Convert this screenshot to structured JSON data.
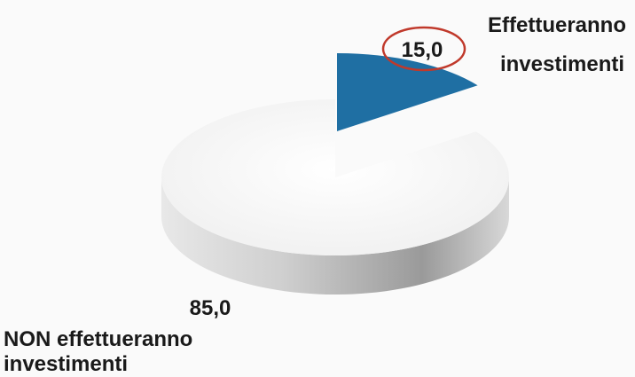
{
  "chart_data": {
    "type": "pie",
    "style": "3d",
    "slices": [
      {
        "label_lines": [
          "Effettueranno",
          "investimenti"
        ],
        "value": 15.0,
        "value_text": "15,0",
        "color": "#1f6fa3",
        "highlighted": true
      },
      {
        "label_lines": [
          "NON effettueranno",
          "investimenti"
        ],
        "value": 85.0,
        "value_text": "85,0",
        "color": "#f2f2f2",
        "side_color": "#9a9a9a",
        "highlighted": false
      }
    ],
    "highlight_color": "#c0392b"
  }
}
